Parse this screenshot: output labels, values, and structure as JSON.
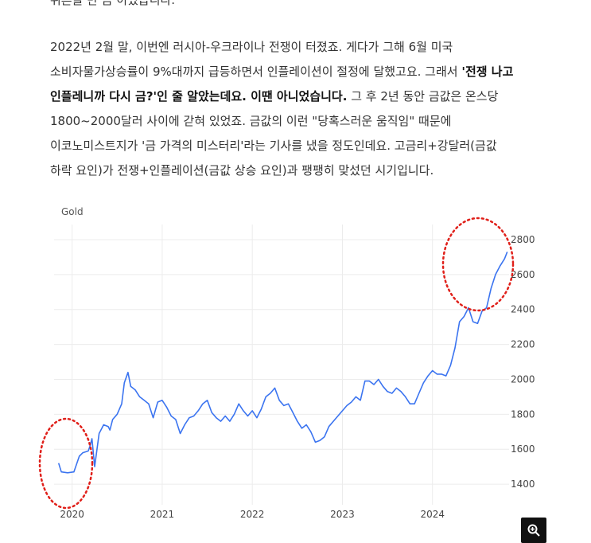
{
  "article": {
    "clipped_line": "뒤흔들 만 큼 이었습니다.",
    "lines": [
      {
        "parts": [
          {
            "t": "2022년 2월 말, 이번엔 러시아-우크라이나 전쟁이 터졌죠. 게다가 그해 6월 미국",
            "b": false
          }
        ]
      },
      {
        "parts": [
          {
            "t": "소비자물가상승률이 9%대까지 급등하면서 인플레이션이 절정에 달했고요. 그래서 ",
            "b": false
          },
          {
            "t": "'전쟁 나고",
            "b": true
          }
        ]
      },
      {
        "parts": [
          {
            "t": "인플레니까 다시 금?'인 줄 알았는데요. 이땐 아니었습니다.",
            "b": true
          },
          {
            "t": " 그 후 2년 동안 금값은 온스당",
            "b": false
          }
        ]
      },
      {
        "parts": [
          {
            "t": "1800~2000달러 사이에 갇혀 있었죠. 금값의 이런 \"당혹스러운 움직임\" 때문에",
            "b": false
          }
        ]
      },
      {
        "parts": [
          {
            "t": "이코노미스트지가 '금 가격의 미스터리'라는 기사를 냈을 정도인데요. 고금리+강달러(금값",
            "b": false
          }
        ]
      },
      {
        "parts": [
          {
            "t": "하락 요인)가 전쟁+인플레이션(금값 상승 요인)과 팽팽히 맞섰던 시기입니다.",
            "b": false
          }
        ]
      }
    ]
  },
  "chart_data": {
    "type": "line",
    "title": "Gold",
    "x_ticks": [
      "2020",
      "2021",
      "2022",
      "2023",
      "2024"
    ],
    "y_ticks": [
      1400,
      1600,
      1800,
      2000,
      2200,
      2400,
      2600,
      2800
    ],
    "ylim": [
      1300,
      2850
    ],
    "xlim": [
      2019.8,
      2024.85
    ],
    "grid": true,
    "series": [
      {
        "color": "#3b74f0",
        "x": [
          2019.85,
          2019.88,
          2019.95,
          2020.02,
          2020.08,
          2020.12,
          2020.18,
          2020.2,
          2020.22,
          2020.25,
          2020.3,
          2020.35,
          2020.4,
          2020.42,
          2020.45,
          2020.5,
          2020.55,
          2020.58,
          2020.62,
          2020.65,
          2020.7,
          2020.75,
          2020.8,
          2020.85,
          2020.9,
          2020.95,
          2021.0,
          2021.05,
          2021.1,
          2021.15,
          2021.2,
          2021.25,
          2021.3,
          2021.35,
          2021.4,
          2021.45,
          2021.5,
          2021.55,
          2021.6,
          2021.65,
          2021.7,
          2021.75,
          2021.8,
          2021.85,
          2021.9,
          2021.95,
          2022.0,
          2022.05,
          2022.1,
          2022.15,
          2022.2,
          2022.25,
          2022.3,
          2022.35,
          2022.4,
          2022.45,
          2022.5,
          2022.55,
          2022.6,
          2022.65,
          2022.7,
          2022.75,
          2022.8,
          2022.85,
          2022.9,
          2022.95,
          2023.0,
          2023.05,
          2023.1,
          2023.15,
          2023.2,
          2023.25,
          2023.3,
          2023.35,
          2023.4,
          2023.45,
          2023.5,
          2023.55,
          2023.6,
          2023.65,
          2023.7,
          2023.75,
          2023.8,
          2023.85,
          2023.9,
          2023.95,
          2024.0,
          2024.05,
          2024.1,
          2024.15,
          2024.2,
          2024.25,
          2024.3,
          2024.35,
          2024.4,
          2024.45,
          2024.5,
          2024.55,
          2024.6,
          2024.65,
          2024.7,
          2024.75,
          2024.8,
          2024.83
        ],
        "y": [
          1520,
          1470,
          1465,
          1470,
          1560,
          1580,
          1590,
          1620,
          1660,
          1500,
          1690,
          1740,
          1730,
          1710,
          1770,
          1800,
          1860,
          1980,
          2040,
          1960,
          1940,
          1900,
          1880,
          1860,
          1780,
          1870,
          1880,
          1840,
          1790,
          1770,
          1690,
          1740,
          1780,
          1790,
          1820,
          1860,
          1880,
          1810,
          1780,
          1760,
          1790,
          1760,
          1800,
          1860,
          1820,
          1790,
          1820,
          1780,
          1830,
          1900,
          1920,
          1950,
          1880,
          1850,
          1860,
          1810,
          1760,
          1720,
          1740,
          1700,
          1640,
          1650,
          1670,
          1730,
          1760,
          1790,
          1820,
          1850,
          1870,
          1900,
          1880,
          1990,
          1990,
          1970,
          2000,
          1960,
          1930,
          1920,
          1950,
          1930,
          1900,
          1860,
          1860,
          1920,
          1980,
          2020,
          2050,
          2030,
          2030,
          2020,
          2080,
          2180,
          2330,
          2360,
          2410,
          2330,
          2320,
          2390,
          2410,
          2520,
          2600,
          2650,
          2690,
          2730
        ]
      }
    ]
  },
  "icons": {
    "zoom": "zoom-in-icon"
  }
}
